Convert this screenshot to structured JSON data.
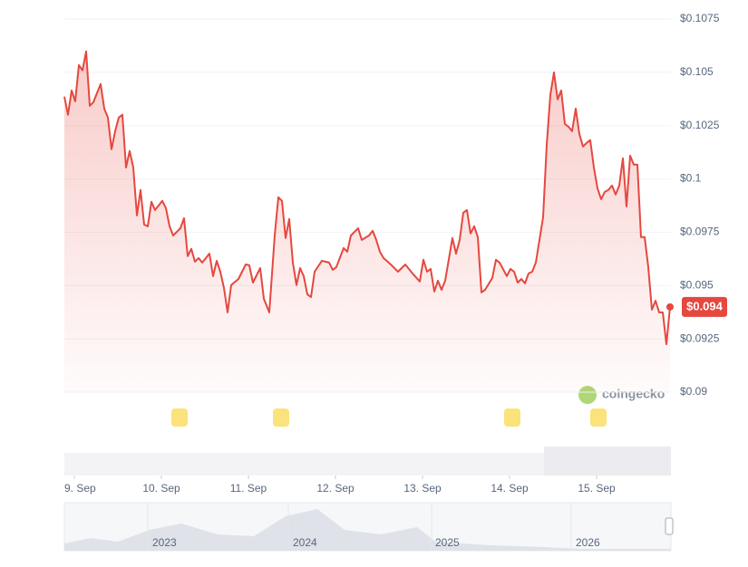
{
  "chart_data": {
    "type": "line",
    "x": [
      0,
      1,
      2,
      3,
      4,
      5,
      6,
      7,
      8,
      10,
      11,
      12,
      13,
      14,
      15,
      16,
      17,
      18,
      19,
      20,
      21,
      22,
      23,
      24,
      25,
      27,
      28,
      29,
      30,
      32,
      33,
      34,
      35,
      36,
      37,
      38,
      40,
      41,
      42,
      43,
      44,
      45,
      46,
      48,
      50,
      51,
      52,
      54,
      55,
      56.5,
      58,
      59,
      60,
      61,
      62,
      63,
      64,
      65,
      66,
      67,
      68,
      69,
      71,
      73,
      74,
      75,
      77,
      78,
      79,
      81,
      82,
      84,
      85,
      86,
      87,
      88,
      90,
      92,
      94,
      96,
      98,
      99,
      100,
      101,
      102,
      103,
      104,
      105,
      107,
      108,
      109,
      110,
      111,
      112,
      113,
      114,
      115,
      116,
      118,
      119,
      120,
      122,
      123,
      124,
      125,
      126,
      127,
      128,
      129,
      130,
      131,
      132,
      133,
      134,
      135,
      136,
      137,
      138,
      139,
      140,
      141,
      142,
      143,
      144,
      145,
      146,
      147,
      148,
      149,
      150,
      151,
      152,
      153,
      154,
      155,
      156,
      157,
      158,
      159,
      160,
      161,
      162,
      163,
      164,
      165,
      166,
      167
    ],
    "series": [
      {
        "color": "#e5483f",
        "values": [
          0.10386,
          0.10301,
          0.10415,
          0.10364,
          0.10534,
          0.10509,
          0.10598,
          0.10343,
          0.1036,
          0.10445,
          0.1033,
          0.10288,
          0.10139,
          0.10224,
          0.10288,
          0.10301,
          0.10054,
          0.10131,
          0.10054,
          0.09829,
          0.09948,
          0.09786,
          0.09778,
          0.09893,
          0.09854,
          0.09897,
          0.09863,
          0.09778,
          0.09735,
          0.09769,
          0.09816,
          0.09638,
          0.09672,
          0.09612,
          0.09629,
          0.09608,
          0.0965,
          0.09544,
          0.09616,
          0.09565,
          0.09489,
          0.09374,
          0.09502,
          0.09531,
          0.09599,
          0.09595,
          0.09514,
          0.09582,
          0.09438,
          0.09374,
          0.09735,
          0.09914,
          0.09897,
          0.09723,
          0.09812,
          0.09608,
          0.09502,
          0.09582,
          0.09544,
          0.09459,
          0.09446,
          0.09565,
          0.09616,
          0.09608,
          0.09574,
          0.09587,
          0.09676,
          0.09659,
          0.09735,
          0.09769,
          0.09714,
          0.09735,
          0.09757,
          0.09714,
          0.09659,
          0.09629,
          0.09599,
          0.09565,
          0.09599,
          0.09557,
          0.09519,
          0.09621,
          0.09565,
          0.09578,
          0.09472,
          0.09523,
          0.0948,
          0.09523,
          0.09723,
          0.0965,
          0.09714,
          0.09842,
          0.09854,
          0.09744,
          0.09778,
          0.09727,
          0.09468,
          0.0948,
          0.09536,
          0.09621,
          0.09608,
          0.09544,
          0.09578,
          0.09565,
          0.09514,
          0.09531,
          0.0951,
          0.09557,
          0.09565,
          0.09608,
          0.09714,
          0.0982,
          0.1016,
          0.10394,
          0.105,
          0.10373,
          0.10415,
          0.10258,
          0.10245,
          0.10224,
          0.1033,
          0.10211,
          0.10152,
          0.10169,
          0.10182,
          0.10054,
          0.09956,
          0.09905,
          0.09939,
          0.09948,
          0.09969,
          0.09927,
          0.09969,
          0.10097,
          0.09871,
          0.10109,
          0.10067,
          0.10067,
          0.09727,
          0.09727,
          0.09587,
          0.09387,
          0.09429,
          0.09374,
          0.09374,
          0.09225,
          0.094
        ],
        "value_labels": [
          null,
          null,
          null,
          null,
          null,
          null,
          null,
          null,
          null,
          null,
          null,
          null,
          null,
          null,
          null,
          null,
          null,
          null,
          null,
          null,
          null,
          null,
          null,
          null,
          null,
          null,
          null,
          null,
          null,
          null,
          null,
          null,
          null,
          null,
          null,
          null,
          null,
          null,
          null,
          null,
          null,
          null,
          null,
          null,
          null,
          null,
          null,
          null,
          null,
          null,
          null,
          null,
          null,
          null,
          null,
          null,
          null,
          null,
          null,
          null,
          null,
          null,
          null,
          null,
          null,
          null,
          null,
          null,
          null,
          null,
          null,
          null,
          null,
          null,
          null,
          null,
          null,
          null,
          null,
          null,
          null,
          null,
          null,
          null,
          null,
          null,
          null,
          null,
          null,
          null,
          null,
          null,
          null,
          null,
          null,
          null,
          null,
          null,
          null,
          null,
          null,
          null,
          null,
          null,
          null,
          null,
          null,
          null,
          null,
          null,
          null,
          null,
          null,
          null,
          null,
          null,
          null,
          null,
          null,
          null,
          null,
          null,
          null,
          null,
          null,
          null,
          null,
          null,
          null,
          null,
          null,
          null,
          null,
          null,
          null,
          null,
          null,
          null,
          null,
          null,
          null,
          null,
          null,
          null,
          null,
          null,
          "$0.094"
        ]
      }
    ],
    "xlim": [
      0,
      167.25
    ],
    "xticks": [
      {
        "value": 2.75,
        "label": "9. Sep"
      },
      {
        "value": 26.75,
        "label": "10. Sep"
      },
      {
        "value": 50.75,
        "label": "11. Sep"
      },
      {
        "value": 74.75,
        "label": "12. Sep"
      },
      {
        "value": 98.75,
        "label": "13. Sep"
      },
      {
        "value": 122.75,
        "label": "14. Sep"
      },
      {
        "value": 146.75,
        "label": "15. Sep"
      }
    ],
    "ylim": [
      0.09,
      0.1075
    ],
    "yticks": [
      {
        "value": 0.09,
        "label": "$0.09"
      },
      {
        "value": 0.0925,
        "label": "$0.0925"
      },
      {
        "value": 0.095,
        "label": "$0.095"
      },
      {
        "value": 0.0975,
        "label": "$0.0975"
      },
      {
        "value": 0.1,
        "label": "$0.1"
      },
      {
        "value": 0.1025,
        "label": "$0.1025"
      },
      {
        "value": 0.105,
        "label": "$0.105"
      },
      {
        "value": 0.1075,
        "label": "$0.1075"
      }
    ],
    "grid": true,
    "watermark": "coingecko",
    "navigator_labels": [
      "2023",
      "2024",
      "2025",
      "2026"
    ]
  }
}
